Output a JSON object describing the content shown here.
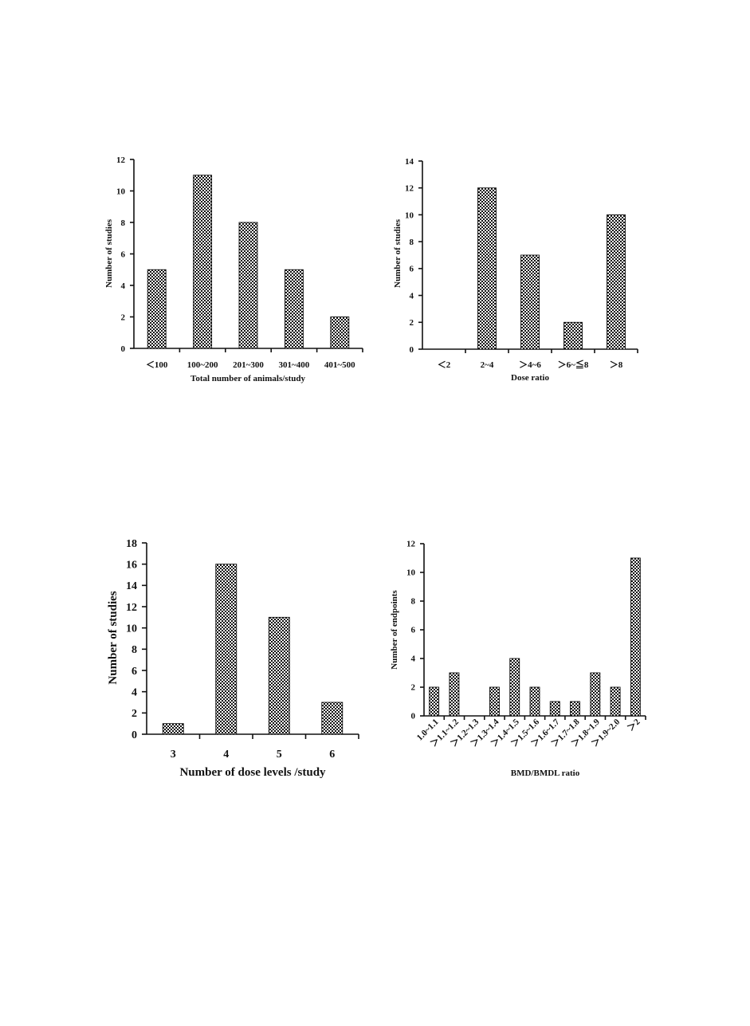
{
  "chart_data": [
    {
      "type": "bar",
      "categories": [
        "＜100",
        "100~200",
        "201~300",
        "301~400",
        "401~500"
      ],
      "values": [
        5,
        11,
        8,
        5,
        2
      ],
      "xlabel": "Total number of animals/study",
      "ylabel": "Number of studies",
      "ylim": [
        0,
        12
      ],
      "yticks": [
        "0",
        "2",
        "4",
        "6",
        "8",
        "10",
        "12"
      ],
      "grid": false,
      "legend": "none"
    },
    {
      "type": "bar",
      "categories": [
        "＜2",
        "2~4",
        "＞4~6",
        "＞6~≦8",
        "＞8"
      ],
      "values": [
        0,
        12,
        7,
        2,
        10
      ],
      "xlabel": "Dose ratio",
      "ylabel": "Number of studies",
      "ylim": [
        0,
        14
      ],
      "yticks": [
        "0",
        "2",
        "4",
        "6",
        "8",
        "10",
        "12",
        "14"
      ],
      "grid": false,
      "legend": "none"
    },
    {
      "type": "bar",
      "categories": [
        "3",
        "4",
        "5",
        "6"
      ],
      "values": [
        1,
        16,
        11,
        3
      ],
      "xlabel": "Number of dose levels /study",
      "ylabel": "Number of studies",
      "ylim": [
        0,
        18
      ],
      "yticks": [
        "0",
        "2",
        "4",
        "6",
        "8",
        "10",
        "12",
        "14",
        "16",
        "18"
      ],
      "grid": false,
      "legend": "none"
    },
    {
      "type": "bar",
      "categories": [
        "1.0~1.1",
        "＞1.1~1.2",
        "＞1.2~1.3",
        "＞1.3~1.4",
        "＞1.4~1.5",
        "＞1.5~1.6",
        "＞1.6~1.7",
        "＞1.7~1.8",
        "＞1.8~1.9",
        "＞1.9~2.0",
        "＞2"
      ],
      "values": [
        2,
        3,
        0,
        2,
        4,
        2,
        1,
        1,
        3,
        2,
        11
      ],
      "xlabel": "BMD/BMDL ratio",
      "ylabel": "Number of endpoints",
      "ylim": [
        0,
        12
      ],
      "yticks": [
        "0",
        "2",
        "4",
        "6",
        "8",
        "10",
        "12"
      ],
      "grid": false,
      "legend": "none"
    }
  ]
}
